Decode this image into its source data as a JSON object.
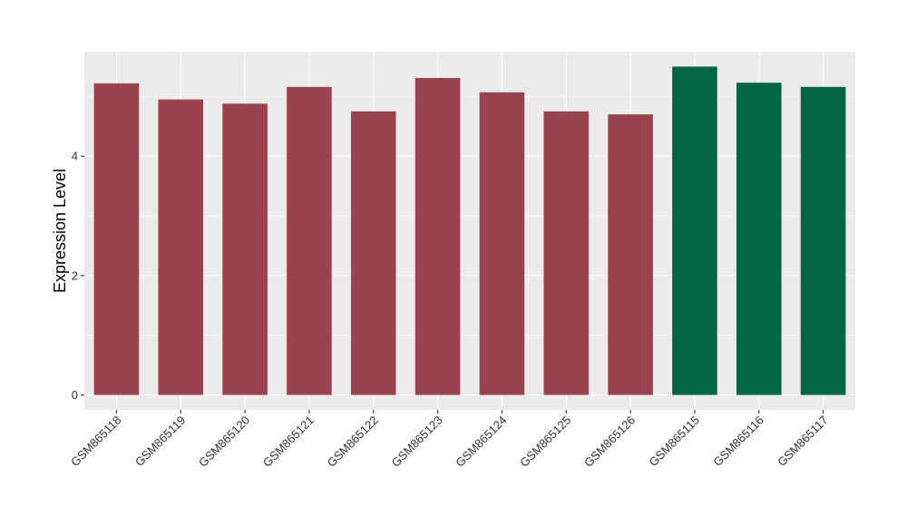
{
  "chart_data": {
    "type": "bar",
    "title": "",
    "xlabel": "",
    "ylabel": "Expression Level",
    "categories": [
      "GSM865118",
      "GSM865119",
      "GSM865120",
      "GSM865121",
      "GSM865122",
      "GSM865123",
      "GSM865124",
      "GSM865125",
      "GSM865126",
      "GSM865115",
      "GSM865116",
      "GSM865117"
    ],
    "values": [
      5.22,
      4.95,
      4.88,
      5.16,
      4.75,
      5.31,
      5.07,
      4.75,
      4.7,
      5.5,
      5.23,
      5.16
    ],
    "groups": [
      "a",
      "a",
      "a",
      "a",
      "a",
      "a",
      "a",
      "a",
      "a",
      "b",
      "b",
      "b"
    ],
    "group_colors": {
      "a": "#9a4350",
      "b": "#006644"
    },
    "ylim": [
      -0.25,
      5.75
    ],
    "yticks": [
      0,
      2,
      4
    ],
    "ytick_labels": [
      "0",
      "2",
      "4"
    ],
    "grid": true,
    "panel_background": "#ebebeb"
  }
}
